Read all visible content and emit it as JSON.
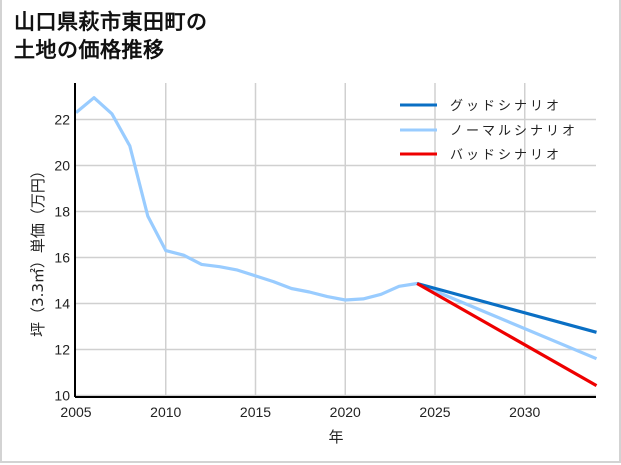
{
  "title_line1": "山口県萩市東田町の",
  "title_line2": "土地の価格推移",
  "chart_data": {
    "type": "line",
    "title": "山口県萩市東田町の土地の価格推移",
    "xlabel": "年",
    "ylabel": "坪（3.3㎡）単価（万円）",
    "xlim": [
      2005,
      2034
    ],
    "ylim": [
      9.9,
      23.5
    ],
    "x_ticks": [
      2005,
      2010,
      2015,
      2020,
      2025,
      2030
    ],
    "y_ticks": [
      10,
      12,
      14,
      16,
      18,
      20,
      22
    ],
    "grid": true,
    "legend_position": "upper right",
    "series": [
      {
        "name": "グッドシナリオ",
        "color": "#0a6fc4",
        "x": [
          2024,
          2034
        ],
        "values": [
          14.87,
          12.75
        ]
      },
      {
        "name": "ノーマルシナリオ",
        "color": "#99ccff",
        "x": [
          2005,
          2006,
          2007,
          2008,
          2009,
          2010,
          2011,
          2012,
          2013,
          2014,
          2015,
          2016,
          2017,
          2018,
          2019,
          2020,
          2021,
          2022,
          2023,
          2024,
          2034
        ],
        "values": [
          22.3,
          22.95,
          22.25,
          20.85,
          17.8,
          16.3,
          16.1,
          15.7,
          15.6,
          15.45,
          15.2,
          14.95,
          14.65,
          14.5,
          14.3,
          14.15,
          14.2,
          14.4,
          14.75,
          14.87,
          11.6
        ]
      },
      {
        "name": "バッドシナリオ",
        "color": "#ee0000",
        "x": [
          2024,
          2034
        ],
        "values": [
          14.87,
          10.43
        ]
      }
    ]
  }
}
